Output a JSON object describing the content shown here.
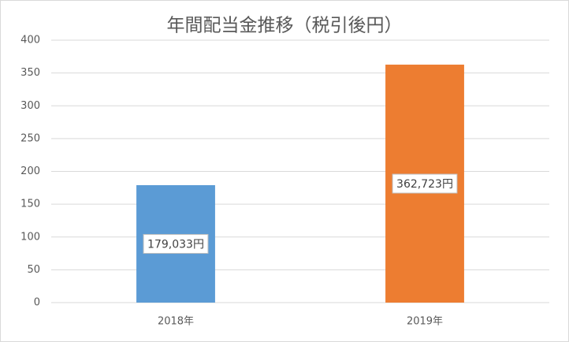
{
  "chart_data": {
    "type": "bar",
    "title": "年間配当金推移（税引後円）",
    "categories": [
      "2018年",
      "2019年"
    ],
    "values": [
      179.033,
      362.723
    ],
    "value_labels": [
      "179,033円",
      "362,723円"
    ],
    "colors": [
      "#5b9bd5",
      "#ed7d31"
    ],
    "ylim": [
      0,
      400
    ],
    "yticks": [
      0,
      50,
      100,
      150,
      200,
      250,
      300,
      350,
      400
    ],
    "grid": true
  }
}
